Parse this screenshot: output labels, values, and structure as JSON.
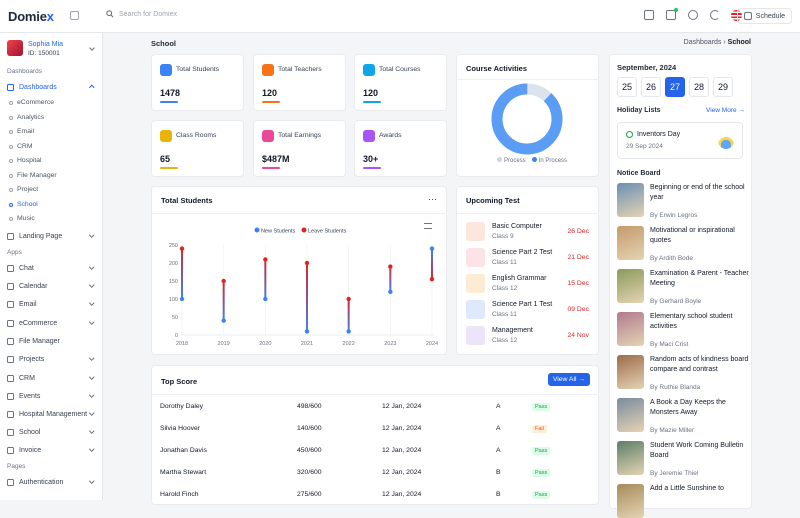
{
  "app": {
    "logo_pre": "Domie",
    "logo_x": "x"
  },
  "search": {
    "placeholder": "Search for Domiex"
  },
  "header": {
    "schedule": "Schedule"
  },
  "user": {
    "name": "Sophia Mia",
    "id": "ID: 150001"
  },
  "sidebar": {
    "sec_dashboards": "Dashboards",
    "dashboards": "Dashboards",
    "sub": [
      "eCommerce",
      "Analytics",
      "Email",
      "CRM",
      "Hospital",
      "File Manager",
      "Project",
      "School",
      "Music"
    ],
    "landing": "Landing Page",
    "sec_apps": "Apps",
    "apps": [
      "Chat",
      "Calendar",
      "Email",
      "eCommerce",
      "File Manager",
      "Projects",
      "CRM",
      "Events",
      "Hospital Management",
      "School",
      "Invoice"
    ],
    "sec_pages": "Pages",
    "auth": "Authentication"
  },
  "page": {
    "title": "School",
    "bread_parent": "Dashboards",
    "bread_current": "School"
  },
  "stats": [
    {
      "label": "Total Students",
      "value": "1478",
      "color": "#3b82f6"
    },
    {
      "label": "Total Teachers",
      "value": "120",
      "color": "#f97316"
    },
    {
      "label": "Total Courses",
      "value": "120",
      "color": "#0ea5e9"
    },
    {
      "label": "Class Rooms",
      "value": "65",
      "color": "#eab308"
    },
    {
      "label": "Total Earnings",
      "value": "$487M",
      "color": "#ec4899"
    },
    {
      "label": "Awards",
      "value": "30+",
      "color": "#a855f7"
    }
  ],
  "course": {
    "title": "Course Activities",
    "legend": [
      "Process",
      "In Process"
    ],
    "process_fraction": 0.12
  },
  "calendar": {
    "month": "September, 2024",
    "days": [
      "25",
      "26",
      "27",
      "28",
      "29"
    ],
    "selected": "27"
  },
  "holiday": {
    "title": "Holiday Lists",
    "view_more": "View More",
    "name": "Inventors Day",
    "date": "29 Sep 2024"
  },
  "notice": {
    "title": "Notice Board",
    "items": [
      {
        "title": "Beginning or end of the school year",
        "by": "By Erwin Legros"
      },
      {
        "title": "Motivational or inspirational quotes",
        "by": "By Ardith Bode"
      },
      {
        "title": "Examination & Parent - Teacher Meeting",
        "by": "By Gerhard Boyle"
      },
      {
        "title": "Elementary school student activities",
        "by": "By Maci Crist"
      },
      {
        "title": "Random acts of kindness board compare and contrast",
        "by": "By Ruthie Blanda"
      },
      {
        "title": "A Book a Day Keeps the Monsters Away",
        "by": "By Mazie Miller"
      },
      {
        "title": "Student Work Coming Bulletin Board",
        "by": "By Jeremie Thiel"
      },
      {
        "title": "Add a Little Sunshine to"
      }
    ]
  },
  "chart_data": {
    "type": "line",
    "title": "Total Students",
    "x": [
      "2018",
      "2019",
      "2020",
      "2021",
      "2022",
      "2023",
      "2024"
    ],
    "ylim": [
      0,
      250
    ],
    "yticks": [
      "0",
      "50",
      "100",
      "150",
      "200",
      "250"
    ],
    "legend_placement": "top-center",
    "series": [
      {
        "name": "New Students",
        "color": "#3b82f6",
        "values": [
          100,
          40,
          100,
          10,
          10,
          120,
          240
        ]
      },
      {
        "name": "Leave Students",
        "color": "#dc2626",
        "values": [
          240,
          150,
          210,
          200,
          100,
          190,
          155
        ]
      }
    ]
  },
  "upcoming": {
    "title": "Upcoming Test",
    "items": [
      {
        "name": "Basic Computer",
        "class": "Class 9",
        "date": "26 Dec",
        "color": "#fde7dc"
      },
      {
        "name": "Science Part 2 Test",
        "class": "Class 11",
        "date": "21 Dec",
        "color": "#fde2e7"
      },
      {
        "name": "English Grammar",
        "class": "Class 12",
        "date": "15 Dec",
        "color": "#fdecd3"
      },
      {
        "name": "Science Part 1 Test",
        "class": "Class 11",
        "date": "09 Dec",
        "color": "#dfe9fc"
      },
      {
        "name": "Management",
        "class": "Class 12",
        "date": "24 Nov",
        "color": "#ede4fc"
      }
    ]
  },
  "topscore": {
    "title": "Top Score",
    "view_all": "View All",
    "rows": [
      {
        "name": "Dorothy Daley",
        "score": "498/600",
        "date": "12 Jan, 2024",
        "grade": "A",
        "status": "Pass"
      },
      {
        "name": "Silvia Hoover",
        "score": "140/600",
        "date": "12 Jan, 2024",
        "grade": "A",
        "status": "Fail"
      },
      {
        "name": "Jonathan Davis",
        "score": "450/600",
        "date": "12 Jan, 2024",
        "grade": "A",
        "status": "Pass"
      },
      {
        "name": "Martha Stewart",
        "score": "320/600",
        "date": "12 Jan, 2024",
        "grade": "B",
        "status": "Pass"
      },
      {
        "name": "Harold Finch",
        "score": "275/600",
        "date": "12 Jan, 2024",
        "grade": "B",
        "status": "Pass"
      }
    ]
  }
}
